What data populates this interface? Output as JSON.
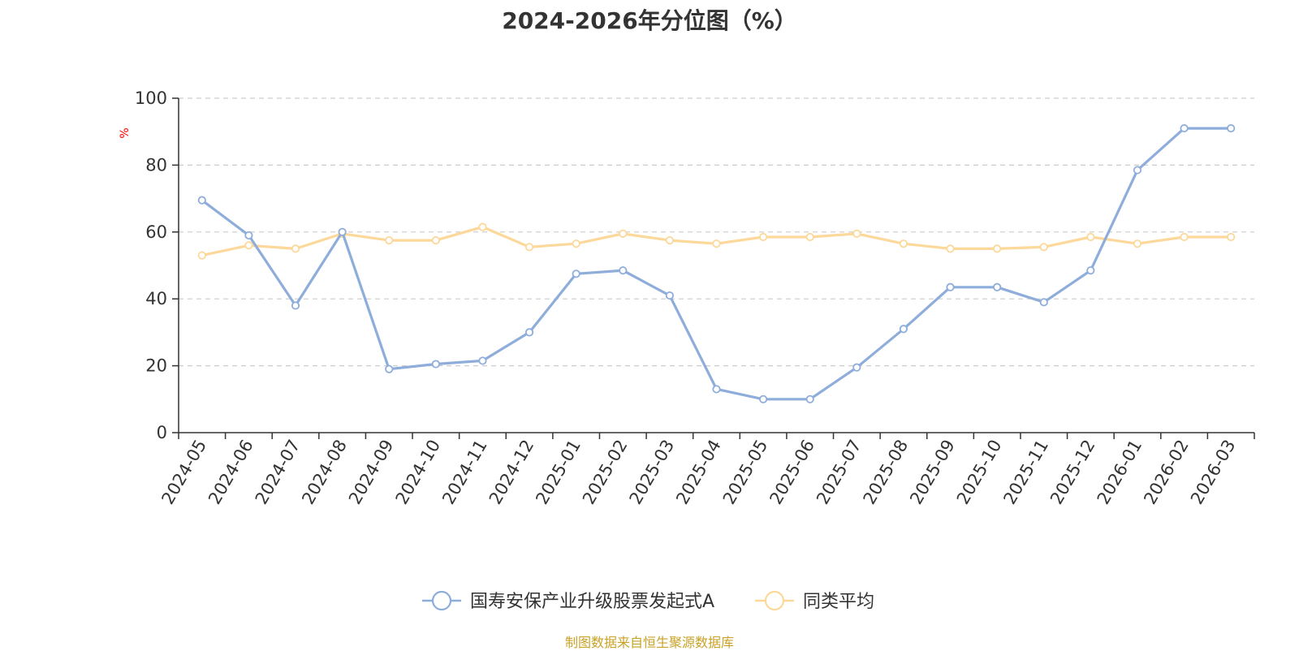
{
  "source_note": "制图数据来自恒生聚源数据库",
  "colors": {
    "series_a": "#8eaddb",
    "series_b": "#fcd89a",
    "source_note": "#c9a227",
    "ylabel": "#ff0000"
  },
  "chart_data": {
    "type": "line",
    "title": "2024-2026年分位图（%）",
    "xlabel": "",
    "ylabel": "%",
    "ylim": [
      0,
      100
    ],
    "yticks": [
      0,
      20,
      40,
      60,
      80,
      100
    ],
    "grid": true,
    "legend_position": "bottom-center",
    "categories": [
      "2024-05",
      "2024-06",
      "2024-07",
      "2024-08",
      "2024-09",
      "2024-10",
      "2024-11",
      "2024-12",
      "2025-01",
      "2025-02",
      "2025-03",
      "2025-04",
      "2025-05",
      "2025-06",
      "2025-07",
      "2025-08",
      "2025-09",
      "2025-10",
      "2025-11",
      "2025-12",
      "2026-01",
      "2026-02",
      "2026-03"
    ],
    "series": [
      {
        "name": "国寿安保产业升级股票发起式A",
        "values": [
          69.5,
          59,
          38,
          60,
          19,
          20.5,
          21.5,
          30,
          47.5,
          48.5,
          41,
          13,
          10,
          10,
          19.5,
          31,
          43.5,
          43.5,
          39,
          48.5,
          78.5,
          91,
          91
        ]
      },
      {
        "name": "同类平均",
        "values": [
          53,
          56,
          55,
          59.5,
          57.5,
          57.5,
          61.5,
          55.5,
          56.5,
          59.5,
          57.5,
          56.5,
          58.5,
          58.5,
          59.5,
          56.5,
          55,
          55,
          55.5,
          58.5,
          56.5,
          58.5,
          58.5
        ]
      }
    ]
  }
}
